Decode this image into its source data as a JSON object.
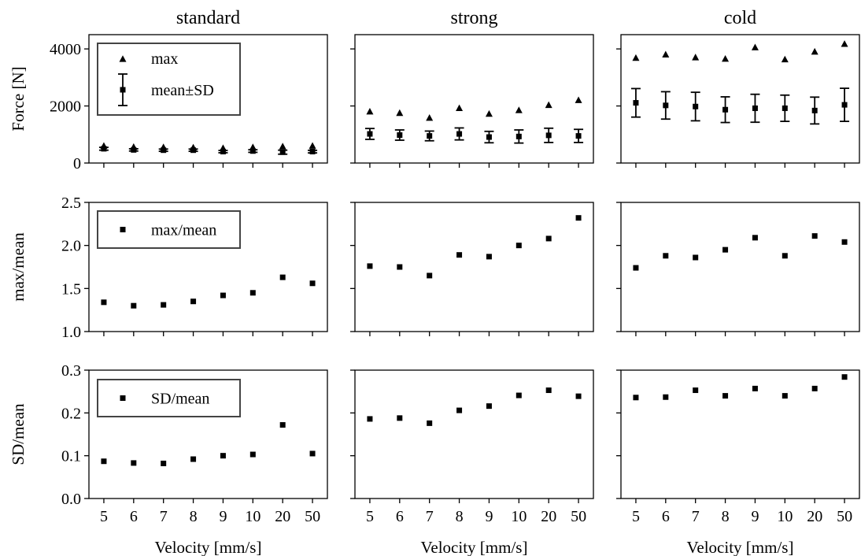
{
  "chart_data": {
    "type": "scatter",
    "x_categories": [
      "5",
      "6",
      "7",
      "8",
      "9",
      "10",
      "20",
      "50"
    ],
    "xlabel": "Velocity [mm/s]",
    "columns": [
      "standard",
      "strong",
      "cold"
    ],
    "rows": [
      {
        "ylabel": "Force [N]",
        "ylim": [
          0,
          4500
        ],
        "yticks": [
          0,
          2000,
          4000
        ],
        "ytick_labels": [
          "0",
          "2000",
          "4000"
        ],
        "legend": [
          "max",
          "mean±SD"
        ]
      },
      {
        "ylabel": "max/mean",
        "ylim": [
          1.0,
          2.5
        ],
        "yticks": [
          1.0,
          1.5,
          2.0,
          2.5
        ],
        "ytick_labels": [
          "1.0",
          "1.5",
          "2.0",
          "2.5"
        ],
        "legend": [
          "max/mean"
        ]
      },
      {
        "ylabel": "SD/mean",
        "ylim": [
          0.0,
          0.3
        ],
        "yticks": [
          0.0,
          0.1,
          0.2,
          0.3
        ],
        "ytick_labels": [
          "0.0",
          "0.1",
          "0.2",
          "0.3"
        ],
        "legend": [
          "SD/mean"
        ]
      }
    ],
    "panels": {
      "standard": {
        "max": [
          600,
          560,
          550,
          540,
          520,
          550,
          580,
          600
        ],
        "mean": [
          500,
          460,
          450,
          450,
          400,
          420,
          380,
          400
        ],
        "sd": [
          50,
          40,
          40,
          40,
          40,
          45,
          70,
          45
        ],
        "max_over_mean": [
          1.34,
          1.3,
          1.31,
          1.35,
          1.42,
          1.45,
          1.63,
          1.56
        ],
        "sd_over_mean": [
          0.087,
          0.083,
          0.082,
          0.092,
          0.1,
          0.103,
          0.172,
          0.105
        ]
      },
      "strong": {
        "max": [
          1800,
          1750,
          1580,
          1920,
          1720,
          1850,
          2030,
          2200
        ],
        "mean": [
          1020,
          980,
          950,
          1020,
          910,
          930,
          970,
          950
        ],
        "sd": [
          190,
          180,
          170,
          210,
          200,
          230,
          250,
          230
        ],
        "max_over_mean": [
          1.76,
          1.75,
          1.65,
          1.89,
          1.87,
          2.0,
          2.08,
          2.32
        ],
        "sd_over_mean": [
          0.186,
          0.188,
          0.176,
          0.206,
          0.216,
          0.241,
          0.253,
          0.239
        ]
      },
      "cold": {
        "max": [
          3680,
          3800,
          3700,
          3650,
          4050,
          3630,
          3900,
          4170
        ],
        "mean": [
          2110,
          2020,
          1980,
          1870,
          1920,
          1920,
          1840,
          2040
        ],
        "sd": [
          500,
          480,
          500,
          450,
          490,
          460,
          470,
          580
        ],
        "max_over_mean": [
          1.74,
          1.88,
          1.86,
          1.95,
          2.09,
          1.88,
          2.11,
          2.04
        ],
        "sd_over_mean": [
          0.236,
          0.237,
          0.253,
          0.24,
          0.257,
          0.24,
          0.257,
          0.284
        ]
      }
    }
  }
}
